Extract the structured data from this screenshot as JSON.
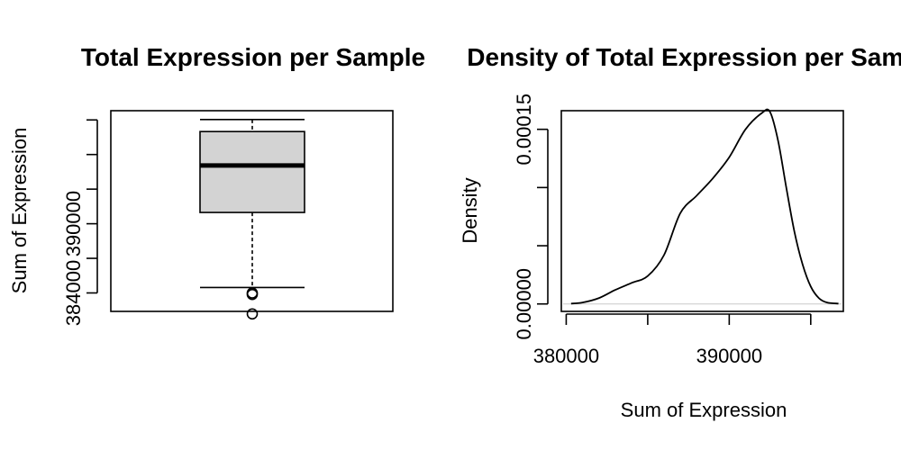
{
  "chart_data": [
    {
      "type": "box",
      "title": "Total Expression per Sample",
      "ylabel": "Sum of Expression",
      "xlabel": "",
      "ylim": [
        382400,
        399800
      ],
      "y_ticks": [
        384000,
        387000,
        390000,
        393000,
        396000,
        399000
      ],
      "y_tick_labels": [
        "384000",
        "",
        "390000",
        "",
        "",
        ""
      ],
      "stats": {
        "min": 384473,
        "q1": 390977,
        "median": 395047,
        "q3": 397991,
        "max": 399034
      },
      "outliers": [
        383868,
        383997,
        382184
      ],
      "box_color": "#d3d3d3"
    },
    {
      "type": "line",
      "title": "Density of Total Expression per Sample",
      "ylabel": "Density",
      "xlabel": "Sum of Expression",
      "xlim": [
        379700,
        397000
      ],
      "ylim": [
        -6.4e-06,
        0.000166
      ],
      "x_ticks": [
        380000,
        385000,
        390000,
        395000
      ],
      "x_tick_labels": [
        "380000",
        "",
        "390000",
        ""
      ],
      "y_ticks": [
        0,
        5e-05,
        0.0001,
        0.00015
      ],
      "y_tick_labels": [
        "0.00000",
        "",
        "",
        "0.00015"
      ],
      "x": [
        380300,
        381000,
        382000,
        383000,
        384000,
        385000,
        386000,
        387000,
        388000,
        389000,
        390000,
        391000,
        392000,
        392500,
        393000,
        393500,
        394000,
        394500,
        395000,
        395500,
        396000,
        396700
      ],
      "y": [
        3e-07,
        1.2e-06,
        5e-06,
        1.2e-05,
        1.8e-05,
        2.4e-05,
        4.2e-05,
        7.8e-05,
        9.3e-05,
        0.000108,
        0.000126,
        0.00015,
        0.000164,
        0.000165,
        0.00014,
        0.0001,
        6.2e-05,
        3.4e-05,
        1.5e-05,
        5e-06,
        1.2e-06,
        3e-07
      ]
    }
  ]
}
